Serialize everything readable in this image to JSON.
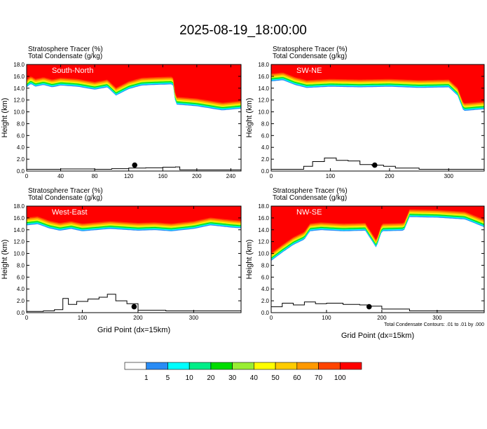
{
  "title": "2025-08-19_18:00:00",
  "field_labels": {
    "tracer": "Stratosphere Tracer   (%)",
    "condensate": "Total Condensate   (g/kg)"
  },
  "ylabel": "Height (km)",
  "xlabel": "Grid Point (dx=15km)",
  "contour_note": "Total Condensate Contours: .01 to .01 by .000",
  "colorbar": {
    "labels": [
      "1",
      "5",
      "10",
      "20",
      "30",
      "40",
      "50",
      "60",
      "70",
      "100"
    ],
    "colors": [
      "#ffffff",
      "#2a8cf5",
      "#00ffff",
      "#00ee88",
      "#00dd00",
      "#99ee33",
      "#ffff00",
      "#ffcc00",
      "#ff9900",
      "#ff4400",
      "#ff0000"
    ]
  },
  "chart_data": [
    {
      "type": "heatmap",
      "name": "South-North",
      "xlim": [
        0,
        252
      ],
      "ylim": [
        0,
        18
      ],
      "x_ticks": [
        0,
        40,
        80,
        120,
        160,
        200,
        240
      ],
      "y_ticks": [
        "0.0",
        "2.0",
        "4.0",
        "6.0",
        "8.0",
        "10.0",
        "12.0",
        "14.0",
        "16.0",
        "18.0"
      ],
      "tracer_bottom_km": {
        "x": [
          0,
          5,
          10,
          20,
          30,
          40,
          60,
          80,
          95,
          105,
          120,
          125,
          135,
          150,
          172,
          175,
          200,
          230,
          252
        ],
        "y": [
          14.2,
          14.8,
          14.3,
          14.6,
          14.2,
          14.5,
          14.3,
          13.8,
          14.2,
          12.8,
          13.9,
          14.1,
          14.5,
          14.6,
          14.7,
          11.3,
          11.0,
          10.3,
          10.6
        ]
      },
      "terrain_km": {
        "x": [
          0,
          40,
          80,
          100,
          120,
          140,
          160,
          175,
          180,
          252
        ],
        "y": [
          0.3,
          0.35,
          0.3,
          0.4,
          0.5,
          0.55,
          0.65,
          0.7,
          0.2,
          0.1
        ]
      },
      "marker": {
        "x": 127,
        "y": 1.0
      }
    },
    {
      "type": "heatmap",
      "name": "SW-NE",
      "xlim": [
        0,
        360
      ],
      "ylim": [
        0,
        18
      ],
      "x_ticks": [
        0,
        100,
        200,
        300
      ],
      "y_ticks": [
        "0.0",
        "2.0",
        "4.0",
        "6.0",
        "8.0",
        "10.0",
        "12.0",
        "14.0",
        "16.0",
        "18.0"
      ],
      "tracer_bottom_km": {
        "x": [
          0,
          20,
          40,
          60,
          100,
          150,
          200,
          250,
          300,
          315,
          325,
          360
        ],
        "y": [
          15.2,
          15.4,
          14.6,
          14.1,
          14.3,
          14.2,
          14.3,
          14.1,
          14.2,
          12.8,
          10.2,
          10.5
        ]
      },
      "terrain_km": {
        "x": [
          0,
          40,
          55,
          70,
          90,
          110,
          130,
          150,
          170,
          190,
          210,
          250,
          300,
          360
        ],
        "y": [
          0.3,
          0.3,
          0.8,
          1.6,
          2.2,
          1.8,
          1.7,
          1.1,
          1.0,
          0.8,
          0.5,
          0.3,
          0.3,
          0.2
        ]
      },
      "marker": {
        "x": 175,
        "y": 1.0
      }
    },
    {
      "type": "heatmap",
      "name": "West-East",
      "xlim": [
        0,
        385
      ],
      "ylim": [
        0,
        18
      ],
      "x_ticks": [
        0,
        100,
        200,
        300
      ],
      "y_ticks": [
        "0.0",
        "2.0",
        "4.0",
        "6.0",
        "8.0",
        "10.0",
        "12.0",
        "14.0",
        "16.0",
        "18.0"
      ],
      "tracer_bottom_km": {
        "x": [
          0,
          20,
          40,
          60,
          80,
          100,
          150,
          200,
          230,
          260,
          300,
          330,
          370,
          385
        ],
        "y": [
          14.8,
          15.0,
          14.3,
          13.9,
          14.2,
          13.8,
          14.2,
          13.9,
          14.0,
          13.8,
          14.2,
          14.8,
          14.4,
          14.3
        ]
      },
      "terrain_km": {
        "x": [
          0,
          30,
          50,
          65,
          75,
          90,
          110,
          130,
          145,
          160,
          180,
          200,
          250,
          300,
          385
        ],
        "y": [
          0.2,
          0.3,
          0.5,
          2.4,
          1.4,
          1.9,
          2.3,
          2.6,
          3.1,
          2.0,
          1.5,
          0.4,
          0.3,
          0.3,
          0.2
        ]
      },
      "marker": {
        "x": 193,
        "y": 1.0
      }
    },
    {
      "type": "heatmap",
      "name": "NW-SE",
      "xlim": [
        0,
        385
      ],
      "ylim": [
        0,
        18
      ],
      "x_ticks": [
        0,
        100,
        200,
        300
      ],
      "y_ticks": [
        "0.0",
        "2.0",
        "4.0",
        "6.0",
        "8.0",
        "10.0",
        "12.0",
        "14.0",
        "16.0",
        "18.0"
      ],
      "tracer_bottom_km": {
        "x": [
          0,
          20,
          40,
          60,
          70,
          90,
          130,
          170,
          190,
          200,
          240,
          250,
          300,
          350,
          385
        ],
        "y": [
          8.8,
          10.2,
          11.5,
          12.4,
          13.8,
          14.0,
          13.8,
          13.9,
          11.0,
          13.8,
          13.9,
          16.2,
          16.1,
          15.8,
          14.5
        ]
      },
      "terrain_km": {
        "x": [
          0,
          20,
          40,
          60,
          80,
          100,
          130,
          160,
          175,
          200,
          250,
          300,
          385
        ],
        "y": [
          1.0,
          1.6,
          1.3,
          1.8,
          1.5,
          1.6,
          1.4,
          1.3,
          1.1,
          0.6,
          0.3,
          0.3,
          0.2
        ]
      },
      "marker": {
        "x": 177,
        "y": 1.0
      }
    }
  ]
}
